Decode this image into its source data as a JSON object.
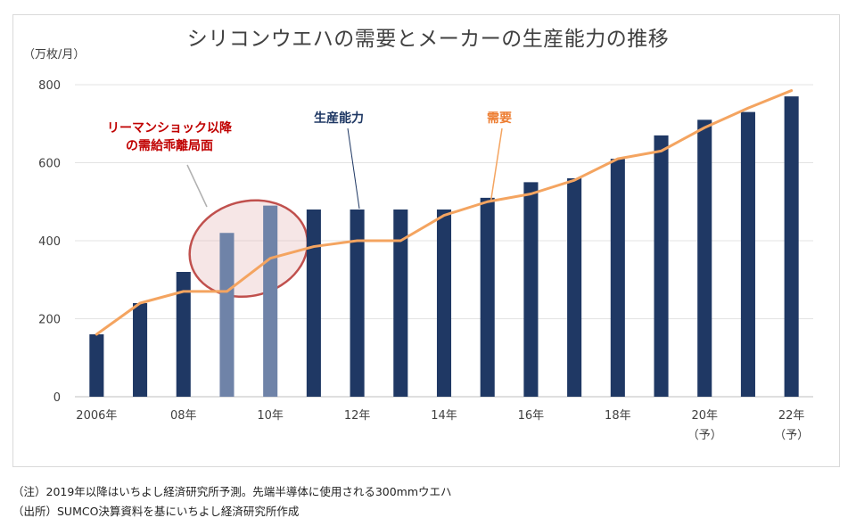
{
  "chart_data": {
    "type": "bar+line",
    "title": "シリコンウエハの需要とメーカーの生産能力の推移",
    "unit_label": "（万枚/月）",
    "categories": [
      "2006",
      "2007",
      "2008",
      "2009",
      "2010",
      "2011",
      "2012",
      "2013",
      "2014",
      "2015",
      "2016",
      "2017",
      "2018",
      "2019",
      "2020",
      "2021",
      "2022"
    ],
    "x_tick_labels": [
      {
        "index": 0,
        "label": "2006年",
        "sub": ""
      },
      {
        "index": 2,
        "label": "08年",
        "sub": ""
      },
      {
        "index": 4,
        "label": "10年",
        "sub": ""
      },
      {
        "index": 6,
        "label": "12年",
        "sub": ""
      },
      {
        "index": 8,
        "label": "14年",
        "sub": ""
      },
      {
        "index": 10,
        "label": "16年",
        "sub": ""
      },
      {
        "index": 12,
        "label": "18年",
        "sub": ""
      },
      {
        "index": 14,
        "label": "20年",
        "sub": "（予）"
      },
      {
        "index": 16,
        "label": "22年",
        "sub": "（予）"
      }
    ],
    "series": [
      {
        "name": "生産能力",
        "type": "bar",
        "color": "#1f3864",
        "values": [
          160,
          240,
          320,
          420,
          490,
          480,
          480,
          480,
          480,
          510,
          550,
          560,
          610,
          670,
          710,
          730,
          770
        ]
      },
      {
        "name": "需要",
        "type": "line",
        "color": "#f4a460",
        "values": [
          160,
          240,
          270,
          270,
          355,
          385,
          400,
          400,
          465,
          500,
          520,
          555,
          610,
          630,
          690,
          740,
          785
        ]
      }
    ],
    "highlight_bars": [
      3,
      4
    ],
    "ylim": [
      0,
      800
    ],
    "yticks": [
      0,
      200,
      400,
      600,
      800
    ],
    "grid": true,
    "annotations": {
      "capacity": "生産能力",
      "demand": "需要",
      "lehman_line1": "リーマンショック以降",
      "lehman_line2": "の需給乖離局面"
    }
  },
  "notes": {
    "note1": "（注）2019年以降はいちよし経済研究所予測。先端半導体に使用される300mmウエハ",
    "note2": "（出所）SUMCO決算資料を基にいちよし経済研究所作成"
  },
  "colors": {
    "bar": "#1f3864",
    "bar_highlight": "#6f83a8",
    "line": "#f4a460",
    "ellipse": "#c0504d"
  }
}
